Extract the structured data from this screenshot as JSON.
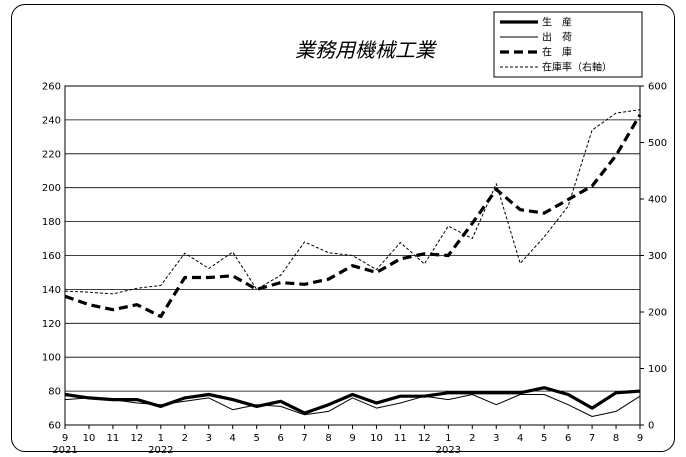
{
  "chart_data": {
    "type": "line",
    "title": "業務用機械工業",
    "x": [
      "9",
      "10",
      "11",
      "12",
      "1",
      "2",
      "3",
      "4",
      "5",
      "6",
      "7",
      "8",
      "9",
      "10",
      "11",
      "12",
      "1",
      "2",
      "3",
      "4",
      "5",
      "6",
      "7",
      "8",
      "9"
    ],
    "year_labels": [
      {
        "index": 0,
        "label": "2021"
      },
      {
        "index": 4,
        "label": "2022"
      },
      {
        "index": 16,
        "label": "2023"
      }
    ],
    "ylim": [
      60,
      260
    ],
    "yticks": [
      60,
      80,
      100,
      120,
      140,
      160,
      180,
      200,
      220,
      240,
      260
    ],
    "y2lim": [
      0,
      600
    ],
    "y2ticks": [
      0,
      100,
      200,
      300,
      400,
      500,
      600
    ],
    "grid": "horizontal",
    "legend": "top-right",
    "series": [
      {
        "name": "生　産",
        "axis": "left",
        "style": "thick-solid",
        "values": [
          78,
          76,
          75,
          75,
          71,
          76,
          78,
          75,
          71,
          74,
          67,
          72,
          78,
          73,
          77,
          77,
          79,
          79,
          79,
          79,
          82,
          78,
          70,
          79,
          80
        ]
      },
      {
        "name": "出　荷",
        "axis": "left",
        "style": "thin-solid",
        "values": [
          75,
          76,
          75,
          73,
          72,
          74,
          76,
          69,
          72,
          71,
          66,
          68,
          76,
          70,
          73,
          77,
          75,
          78,
          72,
          78,
          78,
          72,
          65,
          68,
          77
        ]
      },
      {
        "name": "在　庫",
        "axis": "left",
        "style": "thick-dashed",
        "values": [
          136,
          131,
          128,
          131,
          124,
          147,
          147,
          148,
          140,
          144,
          143,
          146,
          154,
          150,
          158,
          161,
          160,
          179,
          199,
          187,
          185,
          193,
          201,
          219,
          243
        ]
      },
      {
        "name": "在庫率（右軸）",
        "axis": "right",
        "style": "thin-dashed",
        "values": [
          237,
          235,
          232,
          242,
          247,
          304,
          277,
          306,
          240,
          265,
          324,
          305,
          300,
          275,
          323,
          285,
          352,
          330,
          427,
          286,
          333,
          387,
          522,
          552,
          558
        ]
      }
    ]
  }
}
